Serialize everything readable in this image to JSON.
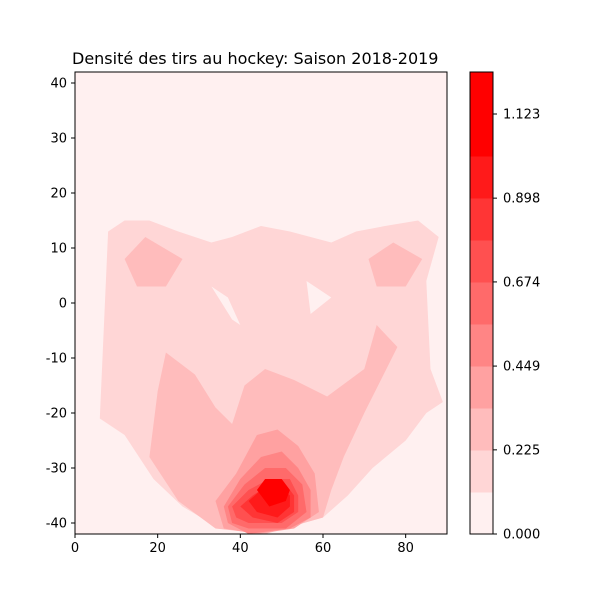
{
  "chart_data": {
    "type": "heatmap",
    "subtype": "filled-contour",
    "title": "Densité des tirs au hockey: Saison 2018-2019",
    "xlabel": "",
    "ylabel": "",
    "xlim": [
      0,
      90
    ],
    "ylim": [
      -42,
      42
    ],
    "x_ticks": [
      0,
      20,
      40,
      60,
      80
    ],
    "y_ticks": [
      -40,
      -30,
      -20,
      -10,
      0,
      10,
      20,
      30,
      40
    ],
    "colorbar": {
      "range": [
        0,
        1.2353
      ],
      "tick_values": [
        0.0,
        0.225,
        0.449,
        0.674,
        0.898,
        1.123
      ],
      "tick_labels": [
        "0.000",
        "0.225",
        "0.449",
        "0.674",
        "0.898",
        "1.123"
      ],
      "colors": [
        "#fff0f0",
        "#ffd6d6",
        "#ffbcbc",
        "#ffa1a1",
        "#ff8585",
        "#ff6a6a",
        "#ff5050",
        "#ff3535",
        "#ff1a1a",
        "#ff0000",
        "#ff0000"
      ]
    },
    "contours": [
      {
        "level": 1,
        "points": [
          [
            6,
            -21
          ],
          [
            8,
            13
          ],
          [
            12,
            15
          ],
          [
            18,
            15
          ],
          [
            25,
            13
          ],
          [
            33,
            11
          ],
          [
            38,
            12
          ],
          [
            45,
            14
          ],
          [
            52,
            13
          ],
          [
            62,
            11
          ],
          [
            68,
            13
          ],
          [
            75,
            14
          ],
          [
            83,
            15
          ],
          [
            88,
            12
          ],
          [
            85,
            4
          ],
          [
            86,
            -12
          ],
          [
            89,
            -18
          ],
          [
            85,
            -20
          ],
          [
            80,
            -25
          ],
          [
            72,
            -30
          ],
          [
            66,
            -35
          ],
          [
            60,
            -39
          ],
          [
            46,
            -42
          ],
          [
            35,
            -41
          ],
          [
            26,
            -37
          ],
          [
            19,
            -32
          ],
          [
            12,
            -24
          ]
        ]
      },
      {
        "level": 2,
        "points": [
          [
            12,
            8
          ],
          [
            17,
            12
          ],
          [
            26,
            8
          ],
          [
            22,
            3
          ],
          [
            15,
            3
          ]
        ]
      },
      {
        "level": 2,
        "points": [
          [
            71,
            8
          ],
          [
            77,
            11
          ],
          [
            84,
            8
          ],
          [
            80,
            3
          ],
          [
            73,
            3
          ]
        ]
      },
      {
        "level": 2,
        "points": [
          [
            22,
            -9
          ],
          [
            29,
            -13
          ],
          [
            34,
            -19
          ],
          [
            38,
            -22
          ],
          [
            41,
            -15
          ],
          [
            46,
            -12
          ],
          [
            53,
            -14
          ],
          [
            61,
            -17
          ],
          [
            70,
            -12
          ],
          [
            73,
            -4
          ],
          [
            78,
            -8
          ],
          [
            70,
            -20
          ],
          [
            65,
            -28
          ],
          [
            62,
            -34
          ],
          [
            60,
            -39
          ],
          [
            46,
            -42
          ],
          [
            34,
            -41
          ],
          [
            25,
            -36
          ],
          [
            18,
            -28
          ],
          [
            20,
            -16
          ]
        ]
      },
      {
        "level": 3,
        "points": [
          [
            34,
            -36
          ],
          [
            39,
            -31
          ],
          [
            44,
            -24
          ],
          [
            49,
            -23
          ],
          [
            54,
            -26
          ],
          [
            58,
            -31
          ],
          [
            59,
            -38
          ],
          [
            53,
            -41
          ],
          [
            44,
            -42
          ],
          [
            36,
            -41
          ]
        ]
      },
      {
        "level": 4,
        "points": [
          [
            36,
            -37
          ],
          [
            40,
            -32
          ],
          [
            45,
            -28
          ],
          [
            50,
            -27
          ],
          [
            54,
            -30
          ],
          [
            57,
            -34
          ],
          [
            57,
            -39
          ],
          [
            52,
            -41
          ],
          [
            42,
            -42
          ],
          [
            37,
            -40
          ]
        ]
      },
      {
        "level": 5,
        "points": [
          [
            37,
            -37
          ],
          [
            41,
            -33
          ],
          [
            46,
            -30
          ],
          [
            51,
            -30
          ],
          [
            55,
            -33
          ],
          [
            56,
            -38
          ],
          [
            51,
            -41
          ],
          [
            42,
            -41
          ],
          [
            38,
            -40
          ]
        ]
      },
      {
        "level": 6,
        "points": [
          [
            38,
            -37
          ],
          [
            42,
            -34
          ],
          [
            47,
            -32
          ],
          [
            52,
            -32
          ],
          [
            54,
            -35
          ],
          [
            54,
            -38
          ],
          [
            50,
            -40
          ],
          [
            42,
            -40
          ],
          [
            39,
            -39
          ]
        ]
      },
      {
        "level": 7,
        "points": [
          [
            40,
            -37
          ],
          [
            43,
            -35
          ],
          [
            47,
            -33
          ],
          [
            51,
            -33
          ],
          [
            53,
            -35
          ],
          [
            53,
            -38
          ],
          [
            49,
            -40
          ],
          [
            43,
            -39
          ]
        ]
      },
      {
        "level": 8,
        "points": [
          [
            42,
            -36
          ],
          [
            45,
            -34
          ],
          [
            49,
            -33
          ],
          [
            52,
            -35
          ],
          [
            52,
            -37
          ],
          [
            49,
            -39
          ],
          [
            44,
            -38
          ]
        ]
      },
      {
        "level": 9,
        "points": [
          [
            44,
            -34
          ],
          [
            46,
            -32
          ],
          [
            50,
            -32
          ],
          [
            52,
            -34
          ],
          [
            51,
            -36
          ],
          [
            47,
            -37
          ]
        ]
      },
      {
        "level": 0,
        "points": [
          [
            33,
            3
          ],
          [
            37,
            1
          ],
          [
            40,
            -4
          ],
          [
            38,
            -3
          ]
        ]
      },
      {
        "level": 0,
        "points": [
          [
            56,
            4
          ],
          [
            62,
            1
          ],
          [
            57,
            -2
          ]
        ]
      }
    ]
  }
}
